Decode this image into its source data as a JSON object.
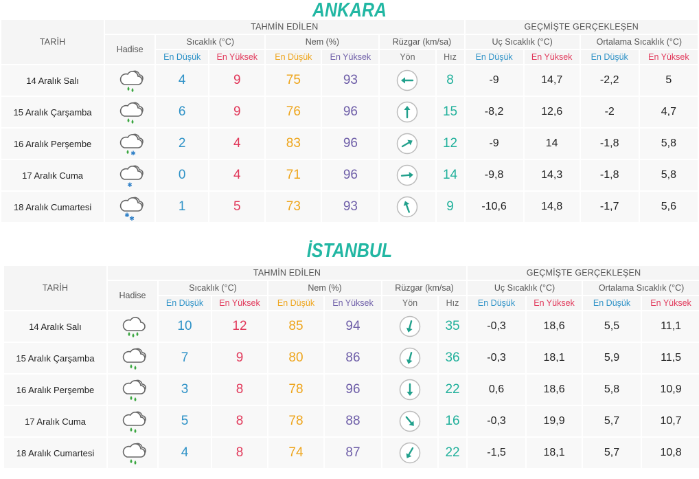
{
  "colors": {
    "accent": "#22b7a3",
    "min_blue": "#2e92c7",
    "max_red": "#e1385a",
    "hum_min": "#eea51c",
    "hum_max": "#6e5ea8",
    "wind": "#21b09b"
  },
  "headers": {
    "tarih": "TARİH",
    "hadise": "Hadise",
    "forecast": "TAHMİN EDİLEN",
    "past": "GEÇMİŞTE GERÇEKLEŞEN",
    "temp": "Sıcaklık (°C)",
    "humidity": "Nem (%)",
    "wind": "Rüzgar (km/sa)",
    "extreme": "Uç Sıcaklık (°C)",
    "average": "Ortalama Sıcaklık (°C)",
    "low": "En Düşük",
    "high": "En Yüksek",
    "direction": "Yön",
    "speed": "Hız"
  },
  "cities": [
    {
      "name": "ANKARA",
      "rows": [
        {
          "date": "14 Aralık Salı",
          "icon": "cloud-rain-icon",
          "temp_min": "4",
          "temp_max": "9",
          "hum_min": "75",
          "hum_max": "93",
          "wind_deg": 270,
          "wind_speed": "8",
          "ext_min": "-9",
          "ext_max": "14,7",
          "avg_min": "-2,2",
          "avg_max": "5"
        },
        {
          "date": "15 Aralık Çarşamba",
          "icon": "cloud-rain-icon",
          "temp_min": "6",
          "temp_max": "9",
          "hum_min": "76",
          "hum_max": "96",
          "wind_deg": 0,
          "wind_speed": "15",
          "ext_min": "-8,2",
          "ext_max": "12,6",
          "avg_min": "-2",
          "avg_max": "4,7"
        },
        {
          "date": "16 Aralık Perşembe",
          "icon": "cloud-sleet-icon",
          "temp_min": "2",
          "temp_max": "4",
          "hum_min": "83",
          "hum_max": "96",
          "wind_deg": 60,
          "wind_speed": "12",
          "ext_min": "-9",
          "ext_max": "14",
          "avg_min": "-1,8",
          "avg_max": "5,8"
        },
        {
          "date": "17 Aralık Cuma",
          "icon": "cloud-snow-icon",
          "temp_min": "0",
          "temp_max": "4",
          "hum_min": "71",
          "hum_max": "96",
          "wind_deg": 85,
          "wind_speed": "14",
          "ext_min": "-9,8",
          "ext_max": "14,3",
          "avg_min": "-1,8",
          "avg_max": "5,8"
        },
        {
          "date": "18 Aralık Cumartesi",
          "icon": "cloud-heavy-snow-icon",
          "temp_min": "1",
          "temp_max": "5",
          "hum_min": "73",
          "hum_max": "93",
          "wind_deg": -20,
          "wind_speed": "9",
          "ext_min": "-10,6",
          "ext_max": "14,8",
          "avg_min": "-1,7",
          "avg_max": "5,6"
        }
      ]
    },
    {
      "name": "İSTANBUL",
      "rows": [
        {
          "date": "14 Aralık Salı",
          "icon": "cloud-heavy-rain-icon",
          "temp_min": "10",
          "temp_max": "12",
          "hum_min": "85",
          "hum_max": "94",
          "wind_deg": 195,
          "wind_speed": "35",
          "ext_min": "-0,3",
          "ext_max": "18,6",
          "avg_min": "5,5",
          "avg_max": "11,1"
        },
        {
          "date": "15 Aralık Çarşamba",
          "icon": "cloud-rain-icon",
          "temp_min": "7",
          "temp_max": "9",
          "hum_min": "80",
          "hum_max": "86",
          "wind_deg": 195,
          "wind_speed": "36",
          "ext_min": "-0,3",
          "ext_max": "18,1",
          "avg_min": "5,9",
          "avg_max": "11,5"
        },
        {
          "date": "16 Aralık Perşembe",
          "icon": "cloud-rain-icon",
          "temp_min": "3",
          "temp_max": "8",
          "hum_min": "78",
          "hum_max": "96",
          "wind_deg": 180,
          "wind_speed": "22",
          "ext_min": "0,6",
          "ext_max": "18,6",
          "avg_min": "5,8",
          "avg_max": "10,9"
        },
        {
          "date": "17 Aralık Cuma",
          "icon": "cloud-rain-icon",
          "temp_min": "5",
          "temp_max": "8",
          "hum_min": "78",
          "hum_max": "88",
          "wind_deg": 140,
          "wind_speed": "16",
          "ext_min": "-0,3",
          "ext_max": "19,9",
          "avg_min": "5,7",
          "avg_max": "10,7"
        },
        {
          "date": "18 Aralık Cumartesi",
          "icon": "cloud-rain-icon",
          "temp_min": "4",
          "temp_max": "8",
          "hum_min": "74",
          "hum_max": "87",
          "wind_deg": 210,
          "wind_speed": "22",
          "ext_min": "-1,5",
          "ext_max": "18,1",
          "avg_min": "5,7",
          "avg_max": "10,8"
        }
      ]
    }
  ]
}
